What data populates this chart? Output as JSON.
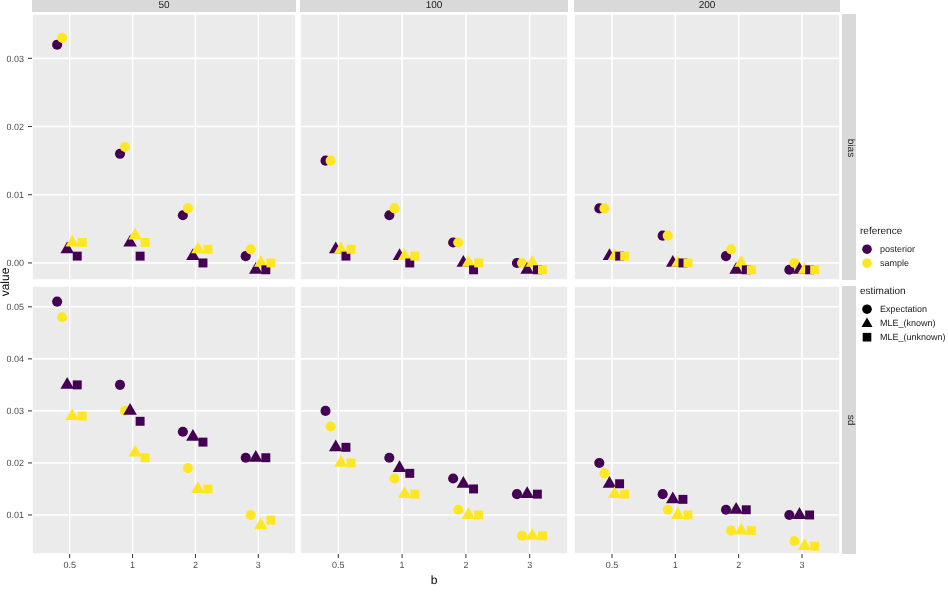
{
  "chart_data": [
    {
      "type": "scatter",
      "title": "50",
      "categories": [
        "0.5",
        "1",
        "2",
        "3"
      ],
      "ylim": [
        -0.0025,
        0.0365
      ],
      "yticks": [
        {
          "value": 0,
          "label": "0.00"
        },
        {
          "value": 0.01,
          "label": "0.01"
        },
        {
          "value": 0.02,
          "label": "0.02"
        },
        {
          "value": 0.03,
          "label": "0.03"
        }
      ],
      "grid": true,
      "tick_labels": "y",
      "series": [
        {
          "color": "#440154",
          "marker": "circle",
          "values": [
            0.032,
            0.016,
            0.007,
            0.001
          ]
        },
        {
          "color": "#fde725",
          "marker": "circle",
          "values": [
            0.033,
            0.017,
            0.008,
            0.002
          ]
        },
        {
          "color": "#440154",
          "marker": "triangle",
          "values": [
            0.002,
            0.003,
            0.001,
            -0.001
          ]
        },
        {
          "color": "#fde725",
          "marker": "triangle",
          "values": [
            0.003,
            0.004,
            0.002,
            0.0
          ]
        },
        {
          "color": "#440154",
          "marker": "square",
          "values": [
            0.001,
            0.001,
            0.0,
            -0.001
          ]
        },
        {
          "color": "#fde725",
          "marker": "square",
          "values": [
            0.003,
            0.003,
            0.002,
            0.0
          ]
        }
      ]
    },
    {
      "type": "scatter",
      "title": "100",
      "categories": [
        "0.5",
        "1",
        "2",
        "3"
      ],
      "ylim": [
        -0.0025,
        0.0365
      ],
      "yticks": [
        0,
        0.01,
        0.02,
        0.03
      ],
      "grid": true,
      "tick_labels": false,
      "series": [
        {
          "color": "#440154",
          "marker": "circle",
          "values": [
            0.015,
            0.007,
            0.003,
            0.0
          ]
        },
        {
          "color": "#fde725",
          "marker": "circle",
          "values": [
            0.015,
            0.008,
            0.003,
            0.0
          ]
        },
        {
          "color": "#440154",
          "marker": "triangle",
          "values": [
            0.002,
            0.001,
            0.0,
            -0.001
          ]
        },
        {
          "color": "#fde725",
          "marker": "triangle",
          "values": [
            0.002,
            0.001,
            0.0,
            0.0
          ]
        },
        {
          "color": "#440154",
          "marker": "square",
          "values": [
            0.001,
            0.0,
            -0.001,
            -0.001
          ]
        },
        {
          "color": "#fde725",
          "marker": "square",
          "values": [
            0.002,
            0.001,
            0.0,
            -0.001
          ]
        }
      ]
    },
    {
      "type": "scatter",
      "title": "200",
      "y2label": "bias",
      "categories": [
        "0.5",
        "1",
        "2",
        "3"
      ],
      "ylim": [
        -0.0025,
        0.0365
      ],
      "yticks": [
        0,
        0.01,
        0.02,
        0.03
      ],
      "grid": true,
      "tick_labels": false,
      "series": [
        {
          "color": "#440154",
          "marker": "circle",
          "values": [
            0.008,
            0.004,
            0.001,
            -0.001
          ]
        },
        {
          "color": "#fde725",
          "marker": "circle",
          "values": [
            0.008,
            0.004,
            0.002,
            0.0
          ]
        },
        {
          "color": "#440154",
          "marker": "triangle",
          "values": [
            0.001,
            0.0,
            -0.001,
            -0.001
          ]
        },
        {
          "color": "#fde725",
          "marker": "triangle",
          "values": [
            0.001,
            0.0,
            0.0,
            -0.001
          ]
        },
        {
          "color": "#440154",
          "marker": "square",
          "values": [
            0.001,
            0.0,
            -0.001,
            -0.001
          ]
        },
        {
          "color": "#fde725",
          "marker": "square",
          "values": [
            0.001,
            0.0,
            -0.001,
            -0.001
          ]
        }
      ]
    },
    {
      "type": "scatter",
      "ylabel": "value",
      "categories": [
        "0.5",
        "1",
        "2",
        "3"
      ],
      "ylim": [
        0.0025,
        0.054
      ],
      "yticks": [
        {
          "value": 0.01,
          "label": "0.01"
        },
        {
          "value": 0.02,
          "label": "0.02"
        },
        {
          "value": 0.03,
          "label": "0.03"
        },
        {
          "value": 0.04,
          "label": "0.04"
        },
        {
          "value": 0.05,
          "label": "0.05"
        }
      ],
      "grid": true,
      "series": [
        {
          "color": "#440154",
          "marker": "circle",
          "values": [
            0.051,
            0.035,
            0.026,
            0.021
          ]
        },
        {
          "color": "#fde725",
          "marker": "circle",
          "values": [
            0.048,
            0.03,
            0.019,
            0.01
          ]
        },
        {
          "color": "#440154",
          "marker": "triangle",
          "values": [
            0.035,
            0.03,
            0.025,
            0.021
          ]
        },
        {
          "color": "#fde725",
          "marker": "triangle",
          "values": [
            0.029,
            0.022,
            0.015,
            0.008
          ]
        },
        {
          "color": "#440154",
          "marker": "square",
          "values": [
            0.035,
            0.028,
            0.024,
            0.021
          ]
        },
        {
          "color": "#fde725",
          "marker": "square",
          "values": [
            0.029,
            0.021,
            0.015,
            0.009
          ]
        }
      ]
    },
    {
      "type": "scatter",
      "xlabel": "b",
      "categories": [
        "0.5",
        "1",
        "2",
        "3"
      ],
      "ylim": [
        0.0025,
        0.054
      ],
      "yticks": [
        0.01,
        0.02,
        0.03,
        0.04,
        0.05
      ],
      "grid": true,
      "tick_labels": "x",
      "series": [
        {
          "color": "#440154",
          "marker": "circle",
          "values": [
            0.03,
            0.021,
            0.017,
            0.014
          ]
        },
        {
          "color": "#fde725",
          "marker": "circle",
          "values": [
            0.027,
            0.017,
            0.011,
            0.006
          ]
        },
        {
          "color": "#440154",
          "marker": "triangle",
          "values": [
            0.023,
            0.019,
            0.016,
            0.014
          ]
        },
        {
          "color": "#fde725",
          "marker": "triangle",
          "values": [
            0.02,
            0.014,
            0.01,
            0.006
          ]
        },
        {
          "color": "#440154",
          "marker": "square",
          "values": [
            0.023,
            0.018,
            0.015,
            0.014
          ]
        },
        {
          "color": "#fde725",
          "marker": "square",
          "values": [
            0.02,
            0.014,
            0.01,
            0.006
          ]
        }
      ]
    },
    {
      "type": "scatter",
      "y2label": "sd",
      "categories": [
        "0.5",
        "1",
        "2",
        "3"
      ],
      "ylim": [
        0.0025,
        0.054
      ],
      "yticks": [
        0.01,
        0.02,
        0.03,
        0.04,
        0.05
      ],
      "grid": true,
      "tick_labels": "x",
      "series": [
        {
          "color": "#440154",
          "marker": "circle",
          "values": [
            0.02,
            0.014,
            0.011,
            0.01
          ]
        },
        {
          "color": "#fde725",
          "marker": "circle",
          "values": [
            0.018,
            0.011,
            0.007,
            0.005
          ]
        },
        {
          "color": "#440154",
          "marker": "triangle",
          "values": [
            0.016,
            0.013,
            0.011,
            0.01
          ]
        },
        {
          "color": "#fde725",
          "marker": "triangle",
          "values": [
            0.014,
            0.01,
            0.007,
            0.004
          ]
        },
        {
          "color": "#440154",
          "marker": "square",
          "values": [
            0.016,
            0.013,
            0.011,
            0.01
          ]
        },
        {
          "color": "#fde725",
          "marker": "square",
          "values": [
            0.014,
            0.01,
            0.007,
            0.004
          ]
        }
      ]
    },
    {
      "type": "other",
      "annotations": [
        "reference",
        "posterior",
        "sample",
        "estimation",
        "Expectation",
        "MLE_(known)",
        "MLE_(unknown)"
      ]
    }
  ]
}
